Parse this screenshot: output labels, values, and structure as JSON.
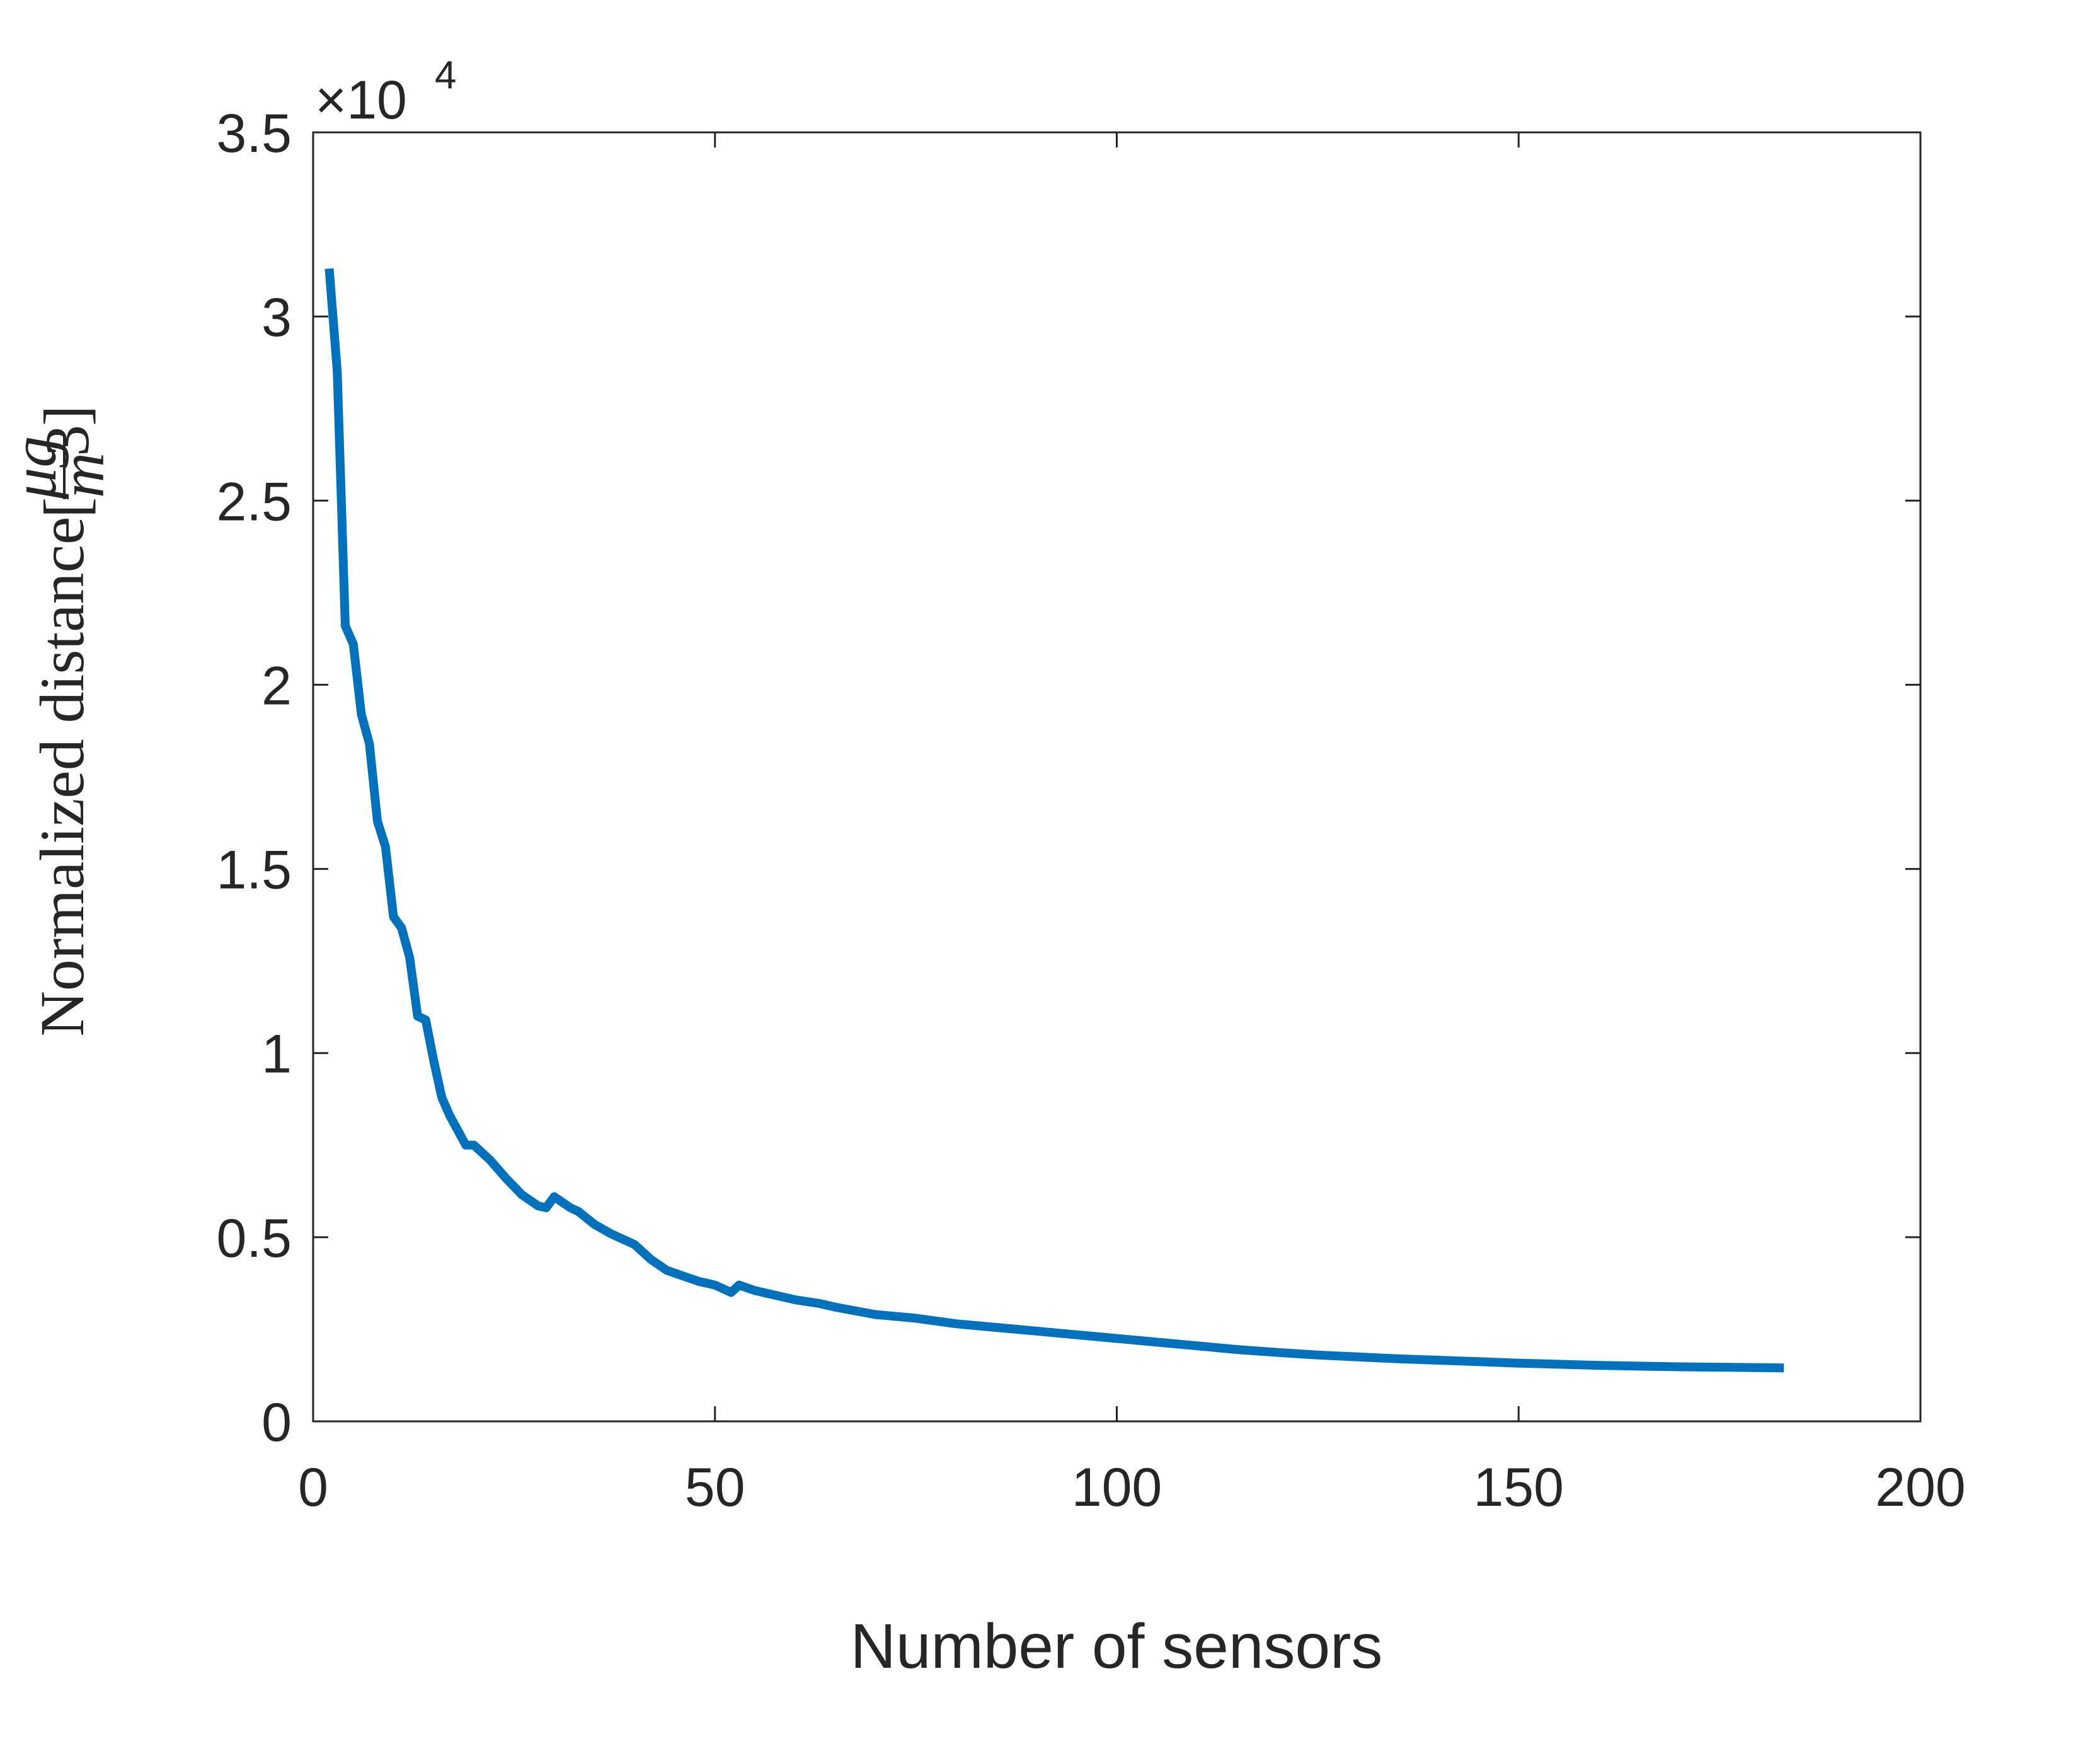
{
  "chart_data": {
    "type": "line",
    "xlabel": "Number of sensors",
    "ylabel": "Normalized distance",
    "ylabel_unit_num": "μg",
    "ylabel_unit_den_base": "m",
    "ylabel_unit_den_exp": "3",
    "y_multiplier": {
      "base": "×10",
      "exponent": "4"
    },
    "xlim": [
      0,
      200
    ],
    "ylim": [
      0,
      3.5
    ],
    "x_ticks": [
      0,
      50,
      100,
      150,
      200
    ],
    "x_tick_labels": [
      "0",
      "50",
      "100",
      "150",
      "200"
    ],
    "y_ticks": [
      0,
      0.5,
      1,
      1.5,
      2,
      2.5,
      3,
      3.5
    ],
    "y_tick_labels": [
      "0",
      "0.5",
      "1",
      "1.5",
      "2",
      "2.5",
      "3",
      "3.5"
    ],
    "grid": false,
    "series": [
      {
        "color": "#0072BD",
        "x": [
          2,
          3,
          4,
          5,
          6,
          7,
          8,
          9,
          10,
          11,
          12,
          13,
          14,
          15,
          16,
          17,
          18,
          19,
          20,
          22,
          24,
          26,
          27,
          28,
          29,
          30,
          32,
          33,
          35,
          37,
          38,
          40,
          42,
          44,
          46,
          48,
          50,
          52,
          53,
          55,
          57,
          60,
          63,
          65,
          70,
          75,
          80,
          85,
          90,
          95,
          100,
          105,
          110,
          115,
          120,
          125,
          130,
          135,
          140,
          145,
          150,
          155,
          160,
          165,
          170,
          175,
          180,
          183
        ],
        "y": [
          3.13,
          2.85,
          2.16,
          2.11,
          1.92,
          1.84,
          1.63,
          1.56,
          1.37,
          1.34,
          1.26,
          1.1,
          1.09,
          0.98,
          0.88,
          0.83,
          0.79,
          0.75,
          0.75,
          0.71,
          0.66,
          0.615,
          0.6,
          0.585,
          0.58,
          0.61,
          0.58,
          0.57,
          0.535,
          0.51,
          0.5,
          0.48,
          0.44,
          0.41,
          0.395,
          0.38,
          0.37,
          0.35,
          0.37,
          0.355,
          0.345,
          0.33,
          0.32,
          0.31,
          0.29,
          0.28,
          0.265,
          0.255,
          0.245,
          0.235,
          0.225,
          0.215,
          0.205,
          0.195,
          0.187,
          0.18,
          0.175,
          0.17,
          0.166,
          0.162,
          0.158,
          0.155,
          0.152,
          0.15,
          0.148,
          0.147,
          0.146,
          0.145
        ]
      }
    ]
  }
}
